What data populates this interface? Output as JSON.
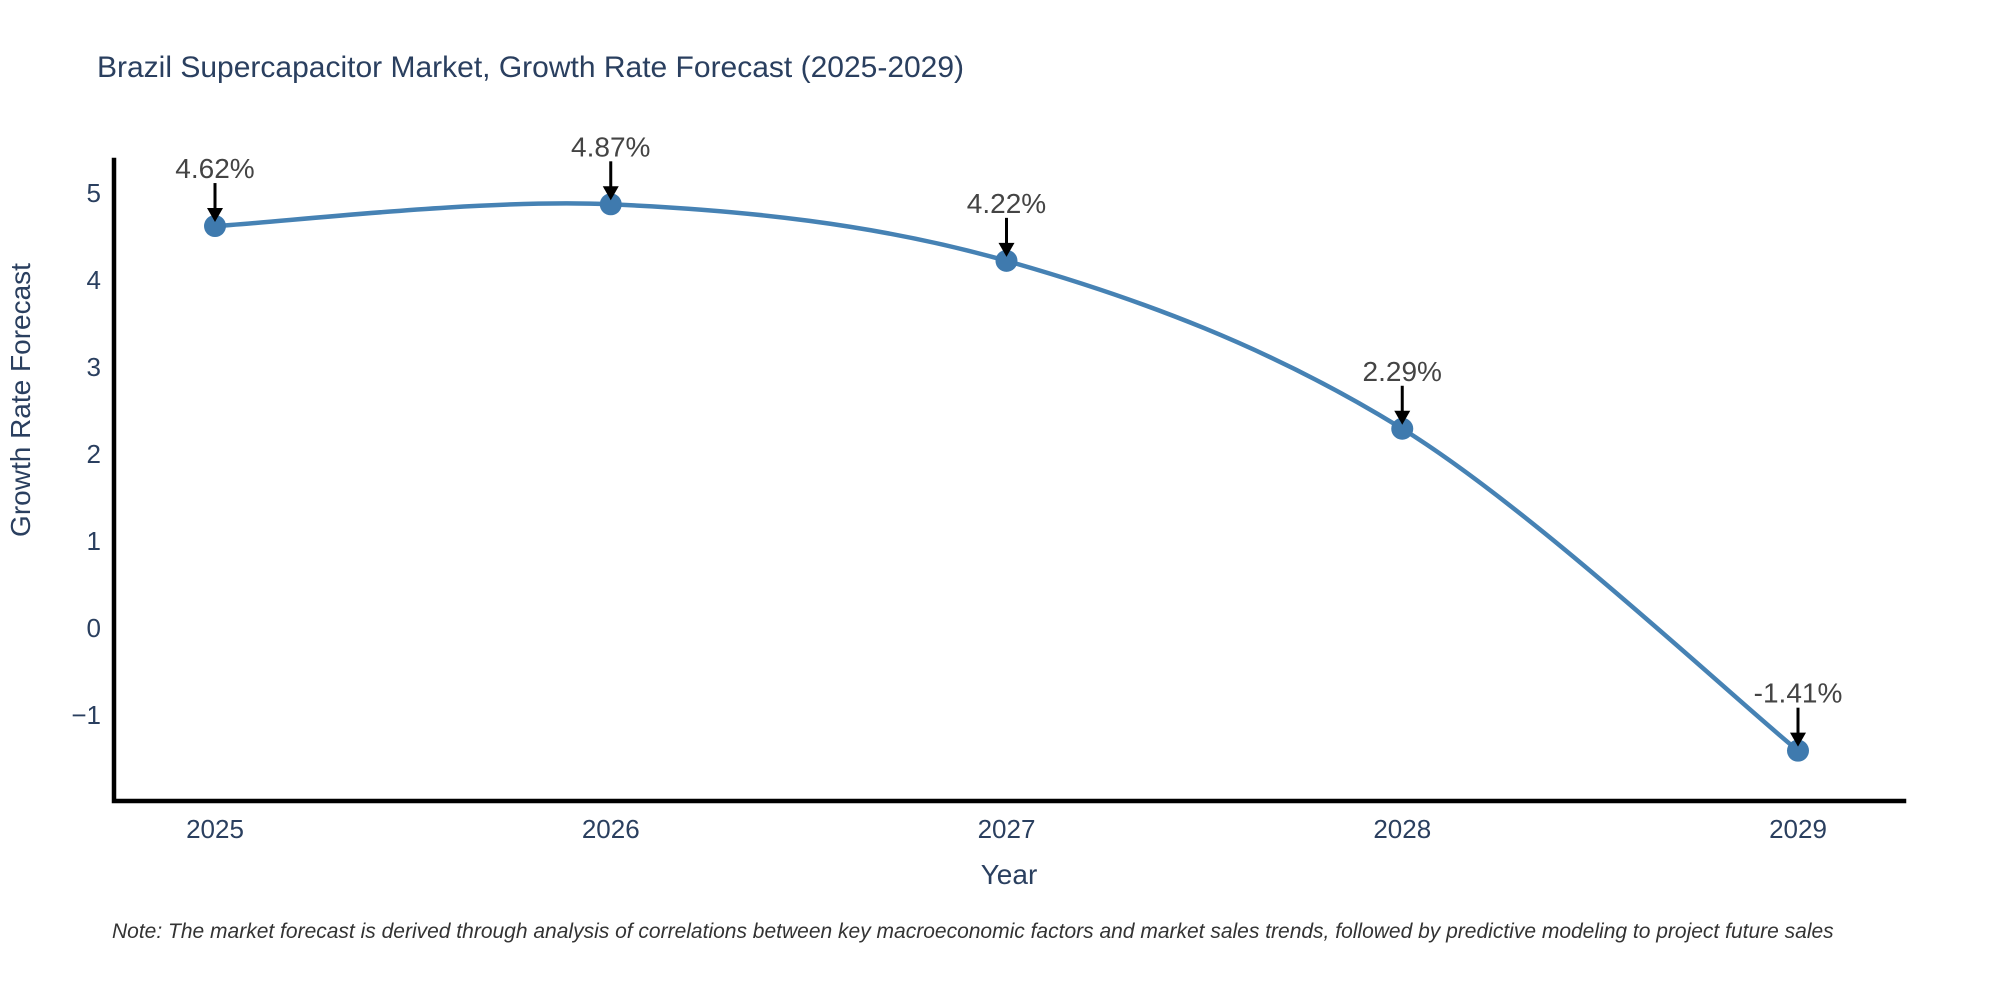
{
  "title": "Brazil Supercapacitor Market, Growth Rate Forecast (2025-2029)",
  "note": "Note: The market forecast is derived through analysis of correlations between key macroeconomic factors and market sales trends, followed by predictive modeling to project future sales",
  "colors": {
    "line": "#4682b4",
    "marker": "#3f7aae",
    "title": "#2a3f5f",
    "tick": "#2a3f5f",
    "annotation": "#444444",
    "note": "#333333",
    "axis": "#000000",
    "background": "#ffffff"
  },
  "chart_data": {
    "type": "line",
    "title": "Brazil Supercapacitor Market, Growth Rate Forecast (2025-2029)",
    "xlabel": "Year",
    "ylabel": "Growth Rate Forecast",
    "x": [
      2025,
      2026,
      2027,
      2028,
      2029
    ],
    "y": [
      4.62,
      4.87,
      4.22,
      2.29,
      -1.41
    ],
    "point_labels": [
      "4.62%",
      "4.87%",
      "4.22%",
      "2.29%",
      "-1.41%"
    ],
    "x_tick_labels": [
      "2025",
      "2026",
      "2027",
      "2028",
      "2029"
    ],
    "y_tick_values": [
      5,
      4,
      3,
      2,
      1,
      0,
      -1
    ],
    "y_tick_labels": [
      "5",
      "4",
      "3",
      "2",
      "1",
      "0",
      "−1"
    ],
    "ylim": [
      -1.98,
      5.38
    ],
    "line_shape": "spline",
    "grid": false,
    "legend_position": "none",
    "annotation_style": "arrow-down-to-point"
  }
}
